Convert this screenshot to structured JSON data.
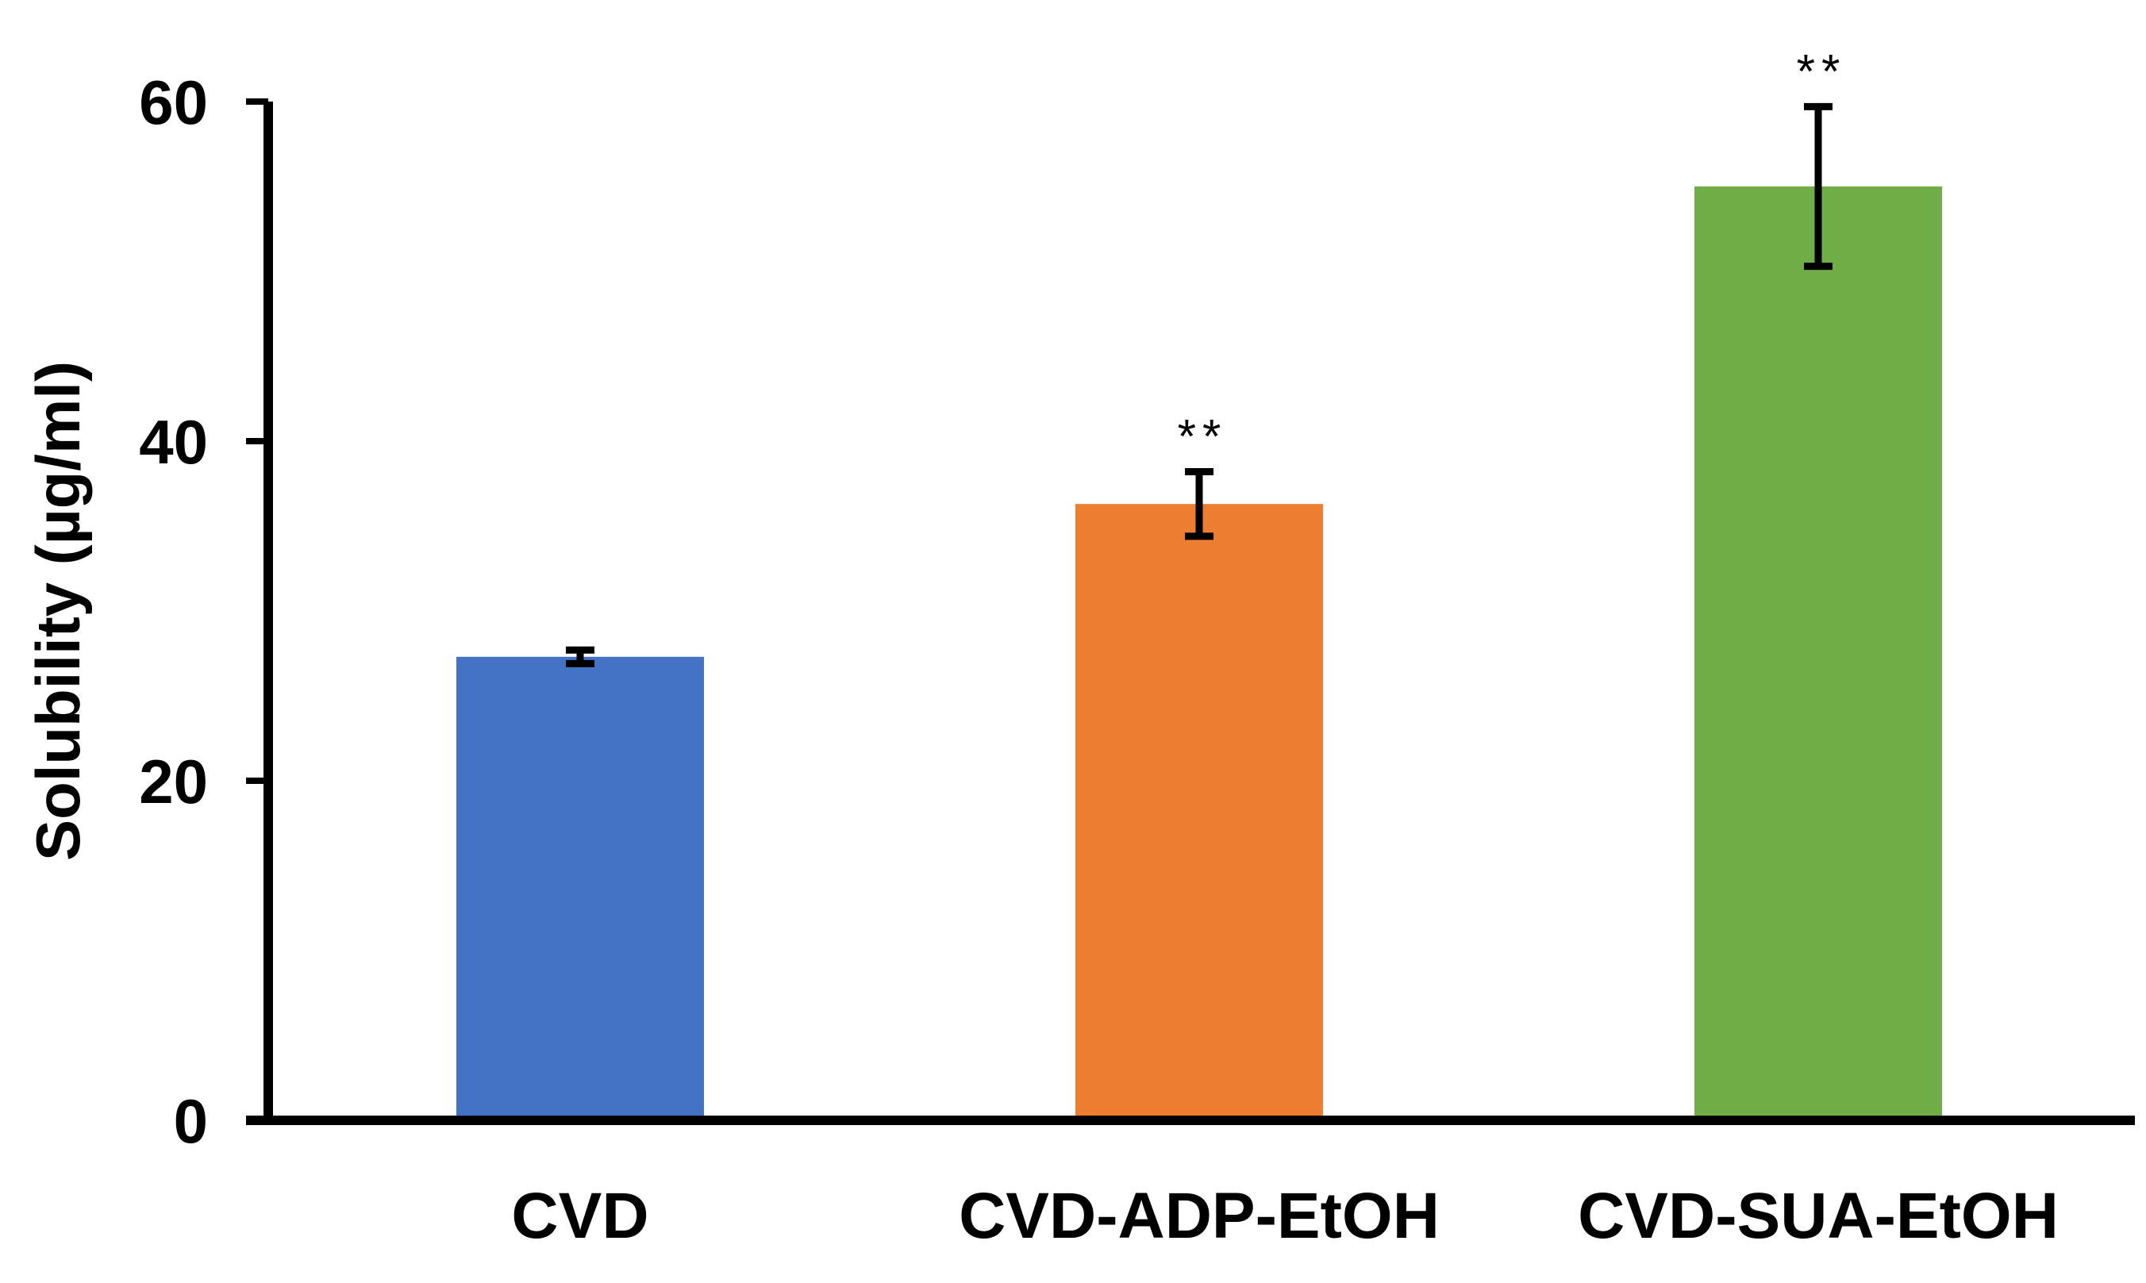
{
  "chart_data": {
    "type": "bar",
    "title": "",
    "xlabel": "",
    "ylabel": "Solubility (µg/ml)",
    "ylim": [
      0,
      60
    ],
    "yticks": [
      0,
      20,
      40,
      60
    ],
    "grid": false,
    "legend": "none",
    "categories": [
      "CVD",
      "CVD-ADP-EtOH",
      "CVD-SUA-EtOH"
    ],
    "values": [
      27.3,
      36.3,
      55.0
    ],
    "errors": [
      0.4,
      1.9,
      4.7
    ],
    "colors": [
      "#4472C4",
      "#ED7D31",
      "#70AD47"
    ],
    "annotations": [
      "",
      "**",
      "**"
    ]
  }
}
